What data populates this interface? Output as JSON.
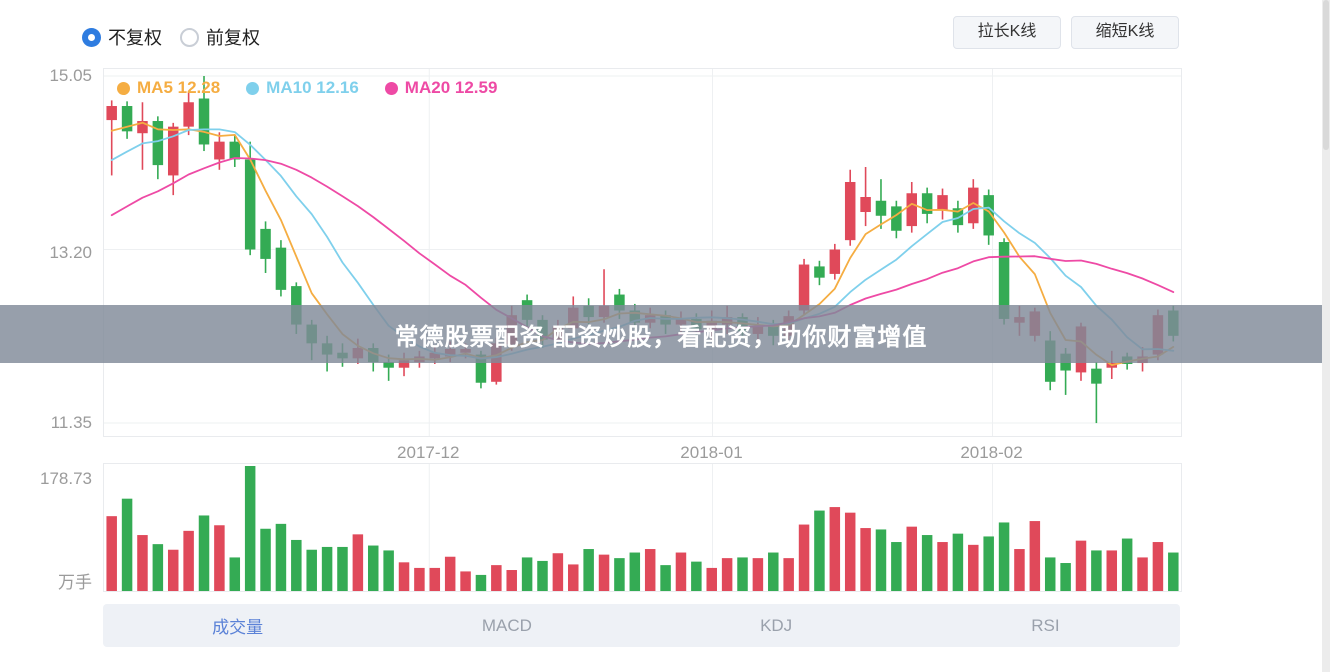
{
  "controls": {
    "radios": [
      {
        "label": "不复权",
        "selected": true
      },
      {
        "label": "前复权",
        "selected": false
      }
    ],
    "buttons": [
      {
        "label": "拉长K线"
      },
      {
        "label": "缩短K线"
      }
    ]
  },
  "banner": {
    "text": "常德股票配资 配资炒股，看配资，助你财富增值"
  },
  "tabs": [
    {
      "label": "成交量",
      "active": true
    },
    {
      "label": "MACD",
      "active": false
    },
    {
      "label": "KDJ",
      "active": false
    },
    {
      "label": "RSI",
      "active": false
    }
  ],
  "ui_colors": {
    "accent": "#2e7ce0",
    "tab_active": "#5b82d7",
    "tab_inactive": "#9aa1ac",
    "banner_bg": "rgba(128,138,153,0.82)",
    "banner_text": "#ffffff"
  },
  "chart_data": {
    "type": "candlestick+volume",
    "legend": [
      {
        "name": "MA5",
        "value": "12.28",
        "text": "MA5 12.28",
        "color": "#f5ad42"
      },
      {
        "name": "MA10",
        "value": "12.16",
        "text": "MA10 12.16",
        "color": "#7fd0ec"
      },
      {
        "name": "MA20",
        "value": "12.59",
        "text": "MA20 12.59",
        "color": "#ee4aa5"
      }
    ],
    "colors": {
      "up": "#e0495a",
      "down": "#34ab54",
      "ma5": "#f5ad42",
      "ma10": "#7fd0ec",
      "ma20": "#ee4aa5"
    },
    "y_axis": {
      "labels": [
        "15.05",
        "13.20",
        "11.35"
      ],
      "values": [
        15.05,
        13.2,
        11.35
      ]
    },
    "x_axis": {
      "labels": [
        "2017-12",
        "2018-01",
        "2018-02"
      ],
      "positions": [
        0.302,
        0.565,
        0.825
      ]
    },
    "volume_axis": {
      "max_label": "178.73",
      "unit": "万手",
      "max": 178.73
    },
    "ma_prior_closes": [
      12.6,
      12.7,
      12.75,
      12.8,
      12.9,
      13.0,
      13.1,
      13.2,
      13.3,
      13.45,
      13.55,
      13.7,
      13.85,
      14.0,
      14.1,
      14.25,
      14.35,
      14.45,
      14.55
    ],
    "candles_format": [
      "open",
      "close",
      "low",
      "high",
      "volume_wan"
    ],
    "candles": [
      [
        14.58,
        14.73,
        13.99,
        14.79,
        107
      ],
      [
        14.73,
        14.46,
        14.38,
        14.78,
        132
      ],
      [
        14.44,
        14.57,
        14.05,
        14.77,
        80
      ],
      [
        14.57,
        14.1,
        13.95,
        14.62,
        67
      ],
      [
        13.99,
        14.51,
        13.78,
        14.55,
        59
      ],
      [
        14.51,
        14.77,
        14.42,
        14.88,
        86
      ],
      [
        14.81,
        14.32,
        14.25,
        15.05,
        108
      ],
      [
        14.16,
        14.35,
        14.05,
        14.45,
        94
      ],
      [
        14.35,
        14.16,
        14.08,
        14.42,
        48
      ],
      [
        14.16,
        13.2,
        13.14,
        14.35,
        178.73
      ],
      [
        13.42,
        13.1,
        12.95,
        13.5,
        89
      ],
      [
        13.22,
        12.77,
        12.7,
        13.3,
        96
      ],
      [
        12.81,
        12.4,
        12.3,
        12.85,
        73
      ],
      [
        12.4,
        12.2,
        12.02,
        12.45,
        59
      ],
      [
        12.2,
        12.08,
        11.9,
        12.28,
        63
      ],
      [
        12.1,
        12.04,
        11.95,
        12.2,
        63
      ],
      [
        12.04,
        12.15,
        11.98,
        12.25,
        81
      ],
      [
        12.15,
        12.0,
        11.9,
        12.2,
        65
      ],
      [
        12.0,
        11.94,
        11.8,
        12.08,
        58
      ],
      [
        11.94,
        12.02,
        11.85,
        12.1,
        41
      ],
      [
        12.0,
        12.06,
        11.94,
        12.12,
        33
      ],
      [
        12.04,
        12.1,
        11.98,
        12.16,
        33
      ],
      [
        12.06,
        12.14,
        12.0,
        12.22,
        49
      ],
      [
        12.1,
        12.14,
        12.04,
        12.2,
        28
      ],
      [
        12.08,
        11.78,
        11.72,
        12.12,
        23
      ],
      [
        11.79,
        12.2,
        11.76,
        12.26,
        37
      ],
      [
        12.19,
        12.5,
        12.12,
        12.6,
        30
      ],
      [
        12.66,
        12.45,
        12.38,
        12.72,
        48
      ],
      [
        12.45,
        12.24,
        12.15,
        12.5,
        43
      ],
      [
        12.24,
        12.38,
        12.18,
        12.45,
        54
      ],
      [
        12.36,
        12.58,
        12.3,
        12.7,
        38
      ],
      [
        12.6,
        12.48,
        12.4,
        12.68,
        60
      ],
      [
        12.48,
        12.6,
        12.42,
        12.99,
        52
      ],
      [
        12.72,
        12.55,
        12.46,
        12.78,
        47
      ],
      [
        12.55,
        12.42,
        12.35,
        12.62,
        55
      ],
      [
        12.42,
        12.5,
        12.36,
        12.58,
        60
      ],
      [
        12.5,
        12.4,
        12.3,
        12.55,
        37
      ],
      [
        12.4,
        12.46,
        12.32,
        12.54,
        55
      ],
      [
        12.46,
        12.35,
        12.25,
        12.52,
        42
      ],
      [
        12.35,
        12.44,
        12.22,
        12.55,
        33
      ],
      [
        12.4,
        12.48,
        12.3,
        12.6,
        47
      ],
      [
        12.48,
        12.33,
        12.25,
        12.52,
        48
      ],
      [
        12.3,
        12.38,
        12.2,
        12.48,
        47
      ],
      [
        12.38,
        12.28,
        12.18,
        12.45,
        55
      ],
      [
        12.28,
        12.49,
        12.22,
        12.55,
        47
      ],
      [
        12.55,
        13.04,
        12.5,
        13.1,
        95
      ],
      [
        13.02,
        12.9,
        12.82,
        13.08,
        115
      ],
      [
        12.94,
        13.2,
        12.88,
        13.26,
        120
      ],
      [
        13.3,
        13.92,
        13.24,
        14.05,
        112
      ],
      [
        13.6,
        13.76,
        13.45,
        14.08,
        90
      ],
      [
        13.72,
        13.56,
        13.42,
        13.95,
        88
      ],
      [
        13.66,
        13.4,
        13.32,
        13.72,
        70
      ],
      [
        13.45,
        13.8,
        13.38,
        13.92,
        92
      ],
      [
        13.8,
        13.58,
        13.48,
        13.86,
        80
      ],
      [
        13.62,
        13.78,
        13.52,
        13.85,
        70
      ],
      [
        13.64,
        13.46,
        13.38,
        13.72,
        82
      ],
      [
        13.48,
        13.86,
        13.42,
        13.95,
        66
      ],
      [
        13.78,
        13.35,
        13.25,
        13.84,
        78
      ],
      [
        13.28,
        12.46,
        12.4,
        13.32,
        98
      ],
      [
        12.42,
        12.48,
        12.28,
        12.6,
        60
      ],
      [
        12.28,
        12.54,
        12.22,
        12.58,
        100
      ],
      [
        12.23,
        11.79,
        11.7,
        12.33,
        48
      ],
      [
        12.09,
        11.91,
        11.65,
        12.15,
        40
      ],
      [
        11.89,
        12.38,
        11.8,
        12.42,
        72
      ],
      [
        11.93,
        11.77,
        11.35,
        12.0,
        58
      ],
      [
        11.94,
        11.99,
        11.82,
        12.12,
        58
      ],
      [
        12.06,
        11.98,
        11.92,
        12.1,
        75
      ],
      [
        11.99,
        12.06,
        11.9,
        12.16,
        48
      ],
      [
        12.08,
        12.5,
        12.02,
        12.56,
        70
      ],
      [
        12.55,
        12.28,
        12.22,
        12.6,
        55
      ]
    ]
  }
}
